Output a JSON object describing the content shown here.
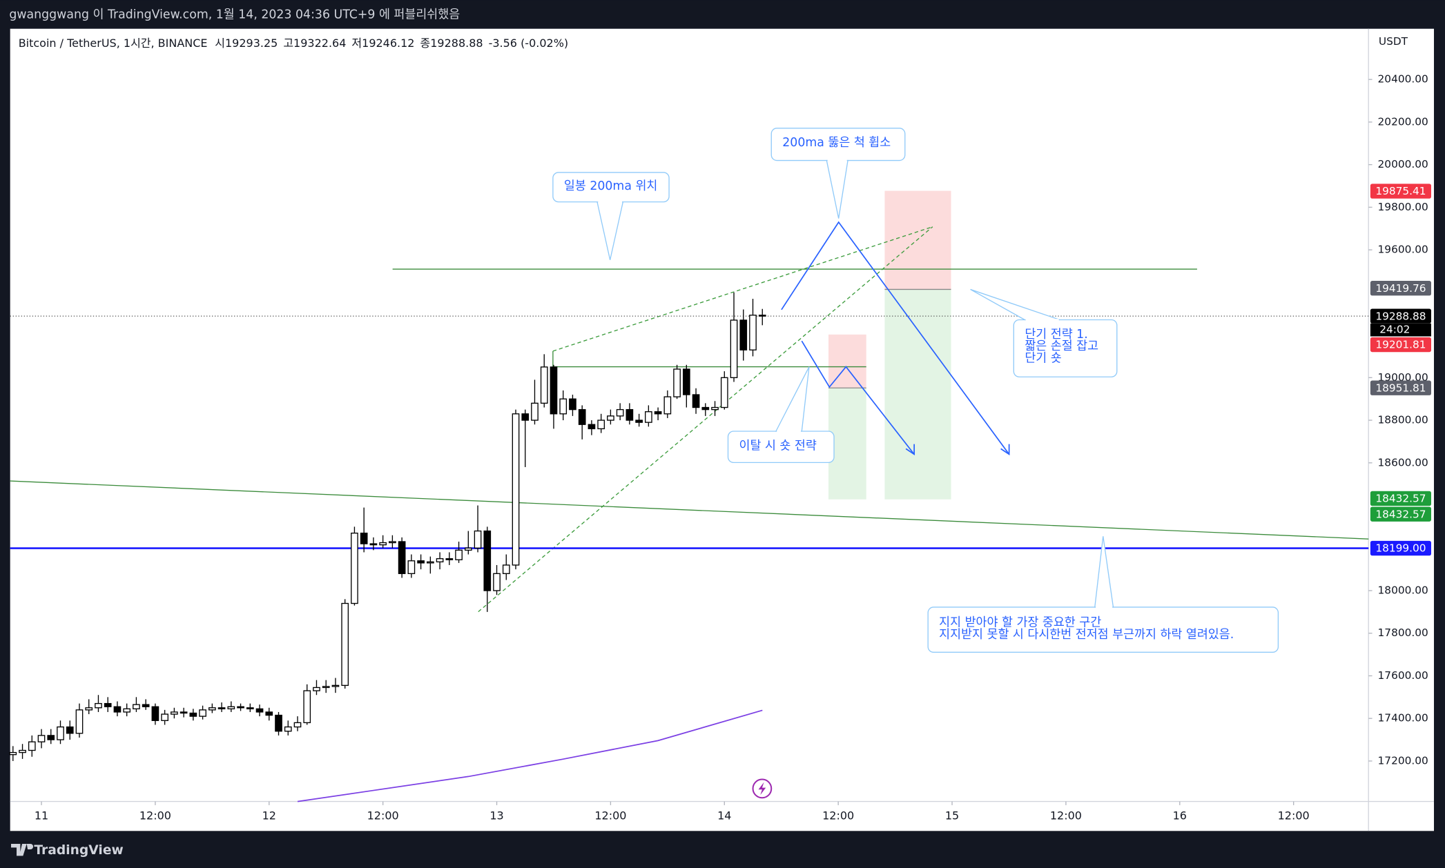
{
  "header": {
    "text": "gwanggwang 이 TradingView.com, 1월 14, 2023 04:36 UTC+9 에 퍼블리쉬했음"
  },
  "footer": {
    "brand": "TradingView"
  },
  "chart_data": {
    "type": "candlestick",
    "symbol": "Bitcoin / TetherUS, 1시간, BINANCE",
    "ohlc_prefixes": [
      "시",
      "고",
      "저",
      "종"
    ],
    "change": "-3.56 (-0.02%)",
    "currency": "USDT",
    "countdown": "24:02",
    "x": [
      -3,
      -2,
      -1,
      0,
      1,
      2,
      3,
      4,
      5,
      6,
      7,
      8,
      9,
      10,
      11,
      12,
      13,
      14,
      15,
      16,
      17,
      18,
      19,
      20,
      21,
      22,
      23,
      24,
      25,
      26,
      27,
      28,
      29,
      30,
      31,
      32,
      33,
      34,
      35,
      36,
      37,
      38,
      39,
      40,
      41,
      42,
      43,
      44,
      45,
      46,
      47,
      48,
      49,
      50,
      51,
      52,
      53,
      54,
      55,
      56,
      57,
      58,
      59,
      60,
      61,
      62,
      63,
      64,
      65,
      66,
      67,
      68,
      69,
      70,
      71,
      72,
      73,
      74,
      75,
      76
    ],
    "series": [
      {
        "up_color": "#ffffff",
        "down_color": "#000000",
        "open": [
          17230,
          17240,
          17250,
          17290,
          17320,
          17300,
          17360,
          17330,
          17440,
          17450,
          17470,
          17455,
          17430,
          17445,
          17465,
          17455,
          17390,
          17420,
          17430,
          17425,
          17410,
          17440,
          17450,
          17445,
          17455,
          17450,
          17445,
          17430,
          17415,
          17340,
          17360,
          17380,
          17530,
          17545,
          17550,
          17555,
          17940,
          18270,
          18220,
          18215,
          18225,
          18230,
          18080,
          18140,
          18130,
          18135,
          18150,
          18145,
          18190,
          18200,
          18280,
          18000,
          18080,
          18120,
          18830,
          18800,
          18880,
          19050,
          18830,
          18900,
          18850,
          18780,
          18760,
          18800,
          18820,
          18850,
          18800,
          18790,
          18840,
          18830,
          18910,
          19040,
          18920,
          18860,
          18850,
          18860,
          19000,
          19270,
          19130,
          19293.25
        ],
        "high": [
          17270,
          17280,
          17320,
          17350,
          17350,
          17390,
          17390,
          17470,
          17490,
          17510,
          17500,
          17480,
          17470,
          17500,
          17490,
          17470,
          17440,
          17450,
          17450,
          17445,
          17460,
          17470,
          17475,
          17480,
          17470,
          17470,
          17465,
          17450,
          17430,
          17390,
          17410,
          17560,
          17580,
          17580,
          17590,
          17960,
          18300,
          18390,
          18250,
          18260,
          18260,
          18250,
          18170,
          18170,
          18160,
          18180,
          18180,
          18230,
          18280,
          18400,
          18300,
          18120,
          18170,
          18850,
          18850,
          18990,
          19110,
          19060,
          18940,
          18920,
          18870,
          18800,
          18830,
          18850,
          18880,
          18880,
          18830,
          18870,
          18860,
          18940,
          19060,
          19060,
          18950,
          18880,
          18890,
          19030,
          19400,
          19320,
          19370,
          19322.64
        ],
        "low": [
          17200,
          17210,
          17220,
          17260,
          17280,
          17280,
          17300,
          17310,
          17420,
          17430,
          17430,
          17410,
          17410,
          17430,
          17440,
          17370,
          17370,
          17400,
          17405,
          17390,
          17395,
          17425,
          17430,
          17430,
          17435,
          17430,
          17410,
          17390,
          17320,
          17320,
          17340,
          17370,
          17510,
          17520,
          17520,
          17540,
          17930,
          18180,
          18190,
          18200,
          18200,
          18060,
          18060,
          18100,
          18080,
          18100,
          18120,
          18130,
          18170,
          18180,
          17900,
          17980,
          18050,
          18100,
          18580,
          18780,
          18860,
          18760,
          18800,
          18820,
          18710,
          18730,
          18740,
          18780,
          18800,
          18780,
          18770,
          18770,
          18800,
          18810,
          18900,
          18860,
          18830,
          18820,
          18820,
          18850,
          18980,
          19080,
          19100,
          19246.12
        ],
        "close": [
          17240,
          17250,
          17290,
          17320,
          17300,
          17360,
          17330,
          17440,
          17450,
          17470,
          17455,
          17430,
          17445,
          17465,
          17455,
          17390,
          17420,
          17430,
          17425,
          17410,
          17440,
          17450,
          17445,
          17455,
          17450,
          17445,
          17430,
          17415,
          17340,
          17360,
          17380,
          17530,
          17545,
          17550,
          17555,
          17940,
          18270,
          18220,
          18215,
          18225,
          18230,
          18080,
          18140,
          18130,
          18135,
          18150,
          18145,
          18190,
          18200,
          18280,
          18000,
          18080,
          18120,
          18830,
          18800,
          18880,
          19050,
          18830,
          18900,
          18850,
          18780,
          18760,
          18800,
          18820,
          18850,
          18800,
          18790,
          18840,
          18830,
          18910,
          19040,
          18920,
          18860,
          18850,
          18860,
          19000,
          19270,
          19130,
          19293.25,
          19288.88
        ]
      }
    ],
    "overlay": {
      "type": "line",
      "color": "#7b3fe4",
      "x": [
        27,
        35,
        45,
        55,
        65,
        76
      ],
      "values": [
        17010,
        17062,
        17127,
        17209,
        17296,
        17438
      ]
    },
    "xlim": [
      -3.3,
      139.9
    ],
    "xticks": [
      {
        "value": 0,
        "label": "11"
      },
      {
        "value": 12,
        "label": "12:00"
      },
      {
        "value": 24,
        "label": "12"
      },
      {
        "value": 36,
        "label": "12:00"
      },
      {
        "value": 48,
        "label": "13"
      },
      {
        "value": 60,
        "label": "12:00"
      },
      {
        "value": 72,
        "label": "14"
      },
      {
        "value": 84,
        "label": "12:00"
      },
      {
        "value": 96,
        "label": "15"
      },
      {
        "value": 108,
        "label": "12:00"
      },
      {
        "value": 120,
        "label": "16"
      },
      {
        "value": 132,
        "label": "12:00"
      }
    ],
    "ylim": [
      17010,
      20638
    ],
    "yticks": [
      {
        "value": 20400,
        "label": "20400.00"
      },
      {
        "value": 20200,
        "label": "20200.00"
      },
      {
        "value": 20000,
        "label": "20000.00"
      },
      {
        "value": 19800,
        "label": "19800.00"
      },
      {
        "value": 19600,
        "label": "19600.00"
      },
      {
        "value": 19000,
        "label": "19000.00"
      },
      {
        "value": 18800,
        "label": "18800.00"
      },
      {
        "value": 18600,
        "label": "18600.00"
      },
      {
        "value": 18000,
        "label": "18000.00"
      },
      {
        "value": 17800,
        "label": "17800.00"
      },
      {
        "value": 17600,
        "label": "17600.00"
      },
      {
        "value": 17400,
        "label": "17400.00"
      },
      {
        "value": 17200,
        "label": "17200.00"
      }
    ],
    "grid": false,
    "price_tags": [
      {
        "value": 19875.41,
        "color": "#f23645"
      },
      {
        "value": 19419.76,
        "color": "#5d606b"
      },
      {
        "value": 19201.81,
        "color": "#f23645"
      },
      {
        "value": 18951.81,
        "color": "#5d606b"
      },
      {
        "value": 18432.57,
        "color": "#1e9e3a"
      },
      {
        "value": 18432.57,
        "color": "#1e9e3a"
      },
      {
        "value": 18199,
        "label": "18199.00",
        "color": "#1a1aff"
      }
    ],
    "annotations": [
      {
        "lines": [
          "일봉 200ma 위치"
        ]
      },
      {
        "lines": [
          "200ma 뚫은 척 휩소"
        ]
      },
      {
        "lines": [
          "단기 전략 1.",
          "짧은 손절 잡고",
          "단기 숏"
        ]
      },
      {
        "lines": [
          "이탈 시 숏 전략"
        ]
      },
      {
        "lines": [
          "지지 받아야 할 가장 중요한 구간",
          "지지받지 못할 시 다시한번 전저점 부근까지 하락 열려있음."
        ]
      }
    ]
  }
}
